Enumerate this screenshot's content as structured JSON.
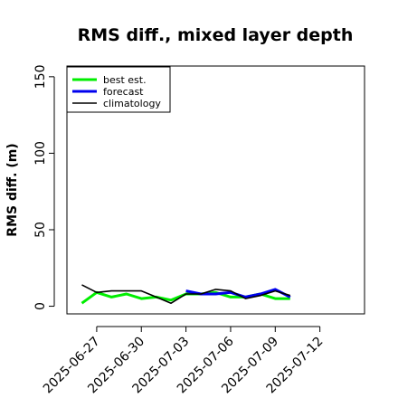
{
  "chart_data": {
    "type": "line",
    "title": "RMS diff., mixed layer depth",
    "xlabel": "",
    "ylabel": "RMS diff. (m)",
    "xlim": [
      "2025-06-25",
      "2025-07-15"
    ],
    "ylim": [
      -5,
      157
    ],
    "yticks": [
      0,
      50,
      100,
      150
    ],
    "xticks": [
      "2025-06-27",
      "2025-06-30",
      "2025-07-03",
      "2025-07-06",
      "2025-07-09",
      "2025-07-12"
    ],
    "highlight_tick": "2025-07-03",
    "highlight_color": "#228B22",
    "legend_position": "top-left",
    "series": [
      {
        "name": "best est.",
        "color": "#00ee00",
        "x": [
          "2025-06-26",
          "2025-06-27",
          "2025-06-28",
          "2025-06-29",
          "2025-06-30",
          "2025-07-01",
          "2025-07-02",
          "2025-07-03",
          "2025-07-04",
          "2025-07-05",
          "2025-07-06",
          "2025-07-07",
          "2025-07-08",
          "2025-07-09",
          "2025-07-10"
        ],
        "values": [
          2,
          9,
          6,
          8,
          5,
          6,
          4,
          8,
          8,
          9,
          6,
          6,
          8,
          5,
          5
        ]
      },
      {
        "name": "forecast",
        "color": "#0000ee",
        "x": [
          "2025-07-03",
          "2025-07-04",
          "2025-07-05",
          "2025-07-06",
          "2025-07-07",
          "2025-07-08",
          "2025-07-09",
          "2025-07-10"
        ],
        "values": [
          10,
          8,
          8,
          9,
          6,
          8,
          11,
          6
        ]
      },
      {
        "name": "climatology",
        "color": "#000000",
        "x": [
          "2025-06-26",
          "2025-06-27",
          "2025-06-28",
          "2025-06-29",
          "2025-06-30",
          "2025-07-01",
          "2025-07-02",
          "2025-07-03",
          "2025-07-04",
          "2025-07-05",
          "2025-07-06",
          "2025-07-07",
          "2025-07-08",
          "2025-07-09",
          "2025-07-10"
        ],
        "values": [
          14,
          9,
          10,
          10,
          10,
          6,
          2,
          8,
          8,
          11,
          10,
          5,
          7,
          10,
          7
        ]
      }
    ]
  }
}
